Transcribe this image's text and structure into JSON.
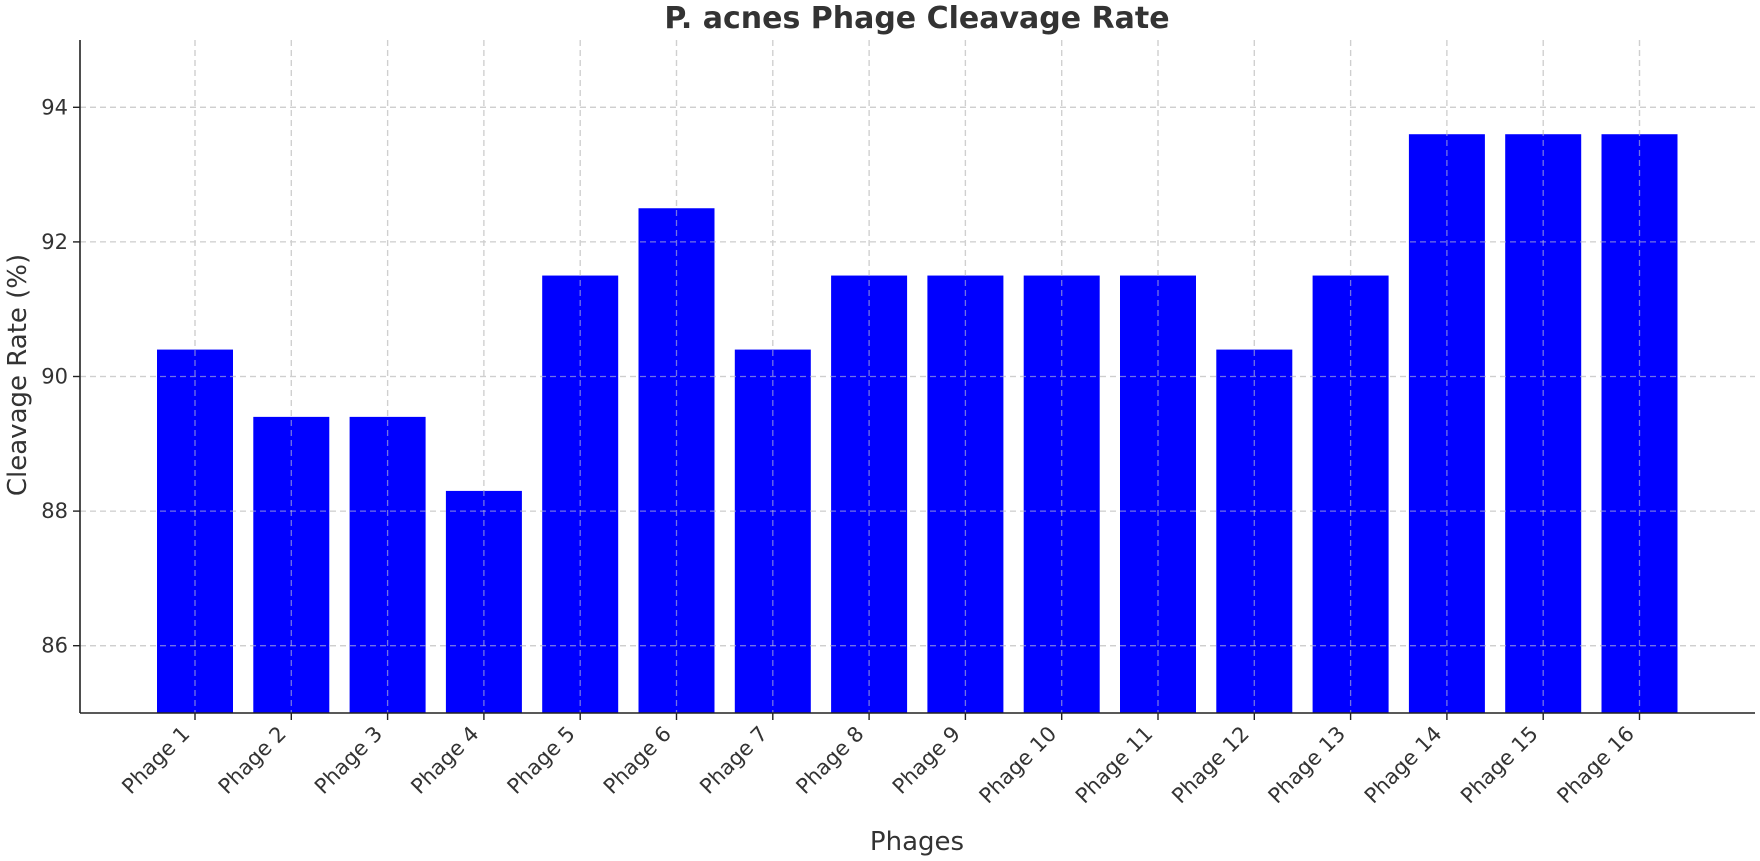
{
  "chart_data": {
    "type": "bar",
    "title": "P. acnes Phage Cleavage Rate",
    "xlabel": "Phages",
    "ylabel": "Cleavage Rate (%)",
    "categories": [
      "Phage 1",
      "Phage 2",
      "Phage 3",
      "Phage 4",
      "Phage 5",
      "Phage 6",
      "Phage 7",
      "Phage 8",
      "Phage 9",
      "Phage 10",
      "Phage 11",
      "Phage 12",
      "Phage 13",
      "Phage 14",
      "Phage 15",
      "Phage 16"
    ],
    "values": [
      90.4,
      89.4,
      89.4,
      88.3,
      91.5,
      92.5,
      90.4,
      91.5,
      91.5,
      91.5,
      91.5,
      90.4,
      91.5,
      93.6,
      93.6,
      93.6
    ],
    "ylim": [
      85,
      95
    ],
    "yticks": [
      86,
      88,
      90,
      92,
      94
    ],
    "bar_color": "#0000ff",
    "grid": true
  }
}
